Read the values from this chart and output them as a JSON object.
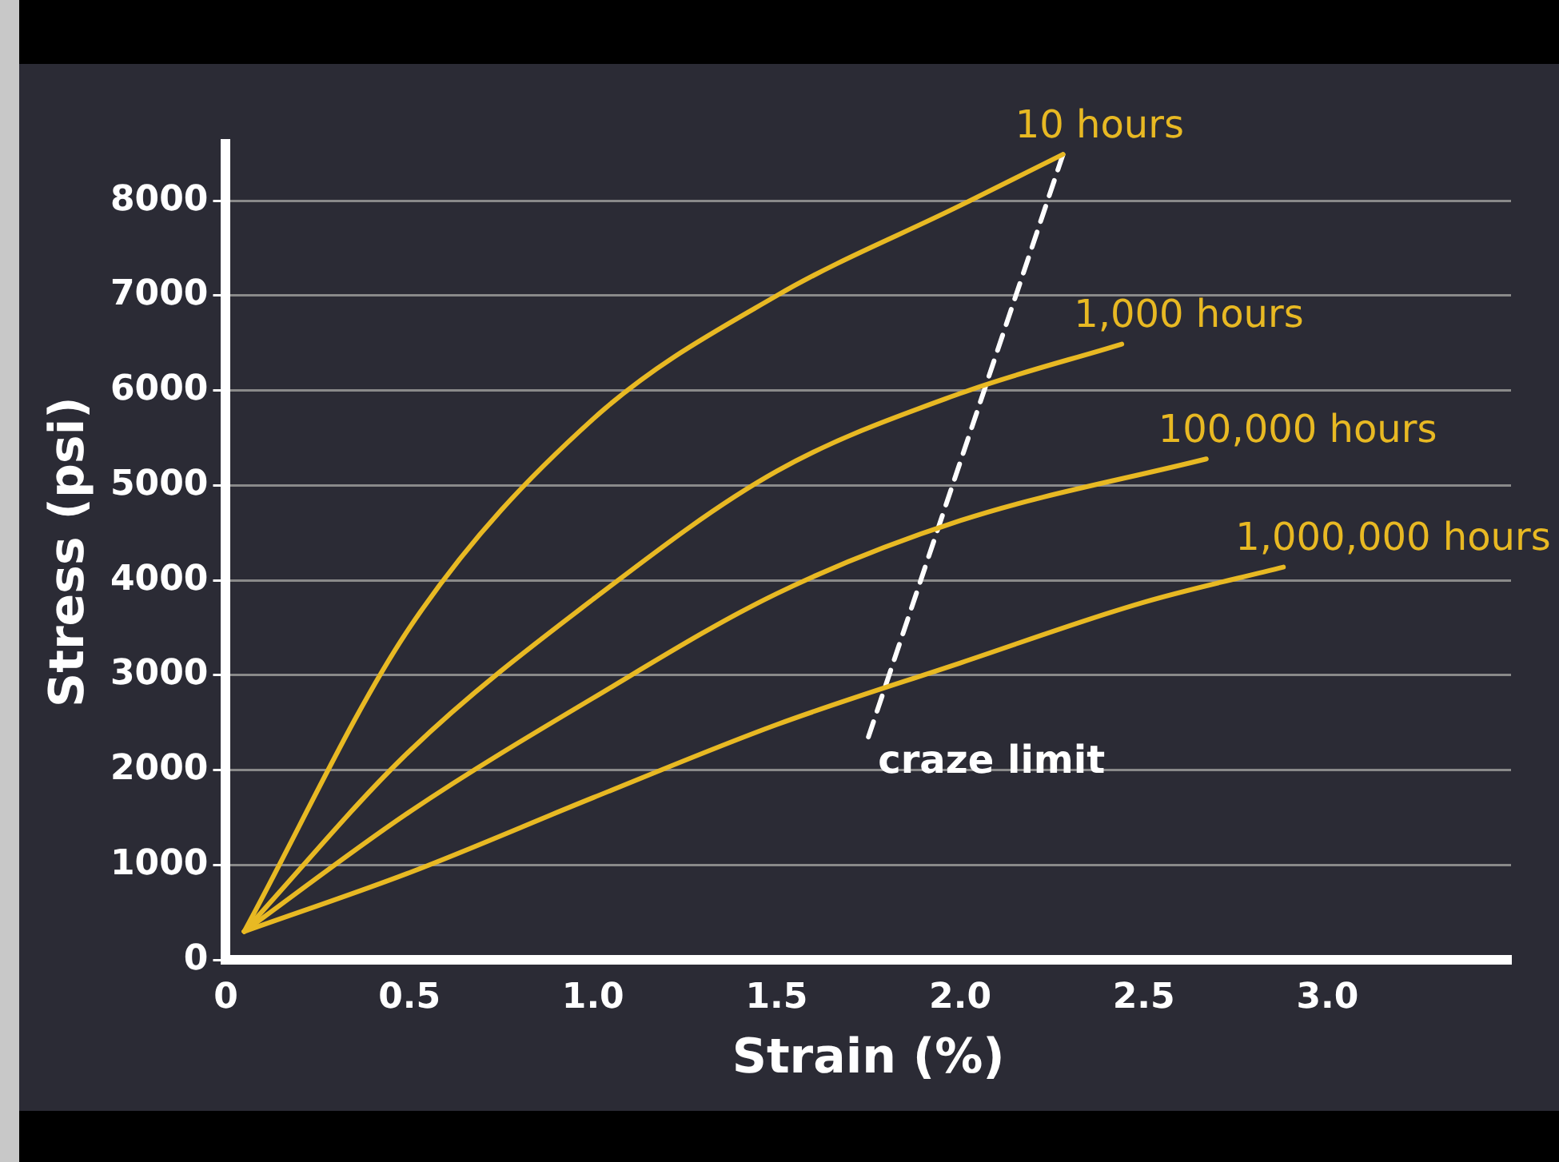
{
  "chart_data": {
    "type": "line",
    "xlabel": "Strain (%)",
    "ylabel": "Stress (psi)",
    "xlim": [
      0,
      3.5
    ],
    "xticks": [
      0,
      0.5,
      {
        "value": 1,
        "label": "1.0"
      },
      1.5,
      {
        "value": 2,
        "label": "2.0"
      },
      2.5,
      {
        "value": 3,
        "label": "3.0"
      }
    ],
    "ylim": [
      0,
      8600
    ],
    "yticks": [
      0,
      1000,
      2000,
      3000,
      4000,
      5000,
      6000,
      7000,
      8000
    ],
    "grid": "y",
    "legend": false,
    "marker": "none",
    "series": [
      {
        "name": "10 hours",
        "color": "#e8b923",
        "x": [
          0.05,
          0.5,
          1.0,
          1.5,
          2.0,
          2.28
        ],
        "values": [
          300,
          3500,
          5700,
          7000,
          7950,
          8490
        ]
      },
      {
        "name": "1,000 hours",
        "color": "#e8b923",
        "x": [
          0.05,
          0.5,
          1.0,
          1.5,
          2.0,
          2.44
        ],
        "values": [
          300,
          2200,
          3800,
          5150,
          5970,
          6490
        ]
      },
      {
        "name": "100,000 hours",
        "color": "#e8b923",
        "x": [
          0.05,
          0.5,
          1.0,
          1.5,
          2.0,
          2.67
        ],
        "values": [
          300,
          1560,
          2760,
          3860,
          4630,
          5280
        ]
      },
      {
        "name": "1,000,000 hours",
        "color": "#e8b923",
        "x": [
          0.05,
          0.5,
          1.0,
          1.5,
          2.0,
          2.5,
          2.88
        ],
        "values": [
          300,
          920,
          1710,
          2480,
          3130,
          3770,
          4140
        ]
      },
      {
        "name": "craze limit",
        "color": "#ffffff",
        "line_style": "dashed",
        "x": [
          1.75,
          2.28
        ],
        "values": [
          2350,
          8490
        ]
      }
    ]
  }
}
